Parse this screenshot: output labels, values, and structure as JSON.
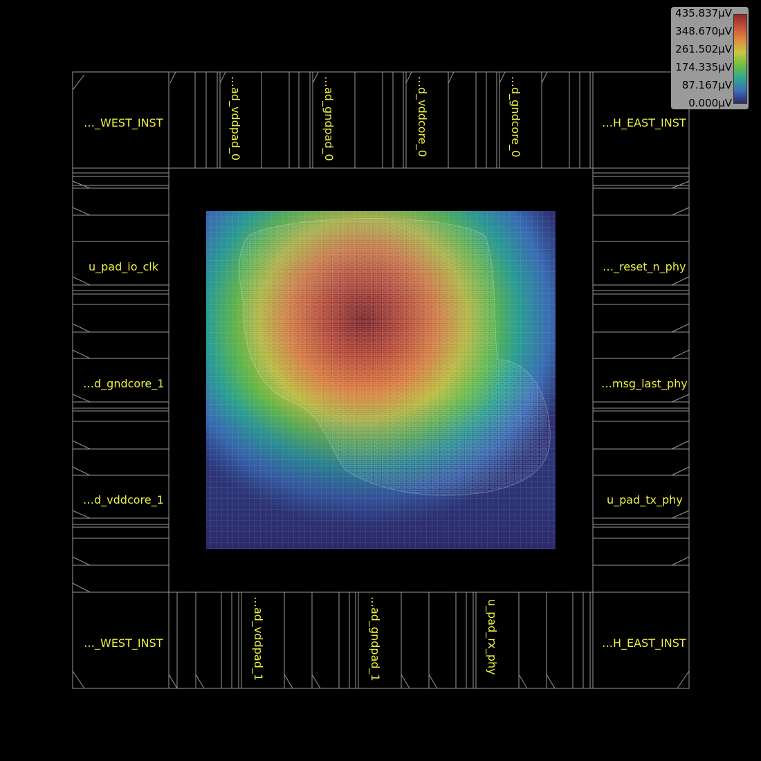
{
  "pads": {
    "top": [
      "…ad_vddpad_0",
      "…ad_gndpad_0",
      "…d_vddcore_0",
      "…d_gndcore_0"
    ],
    "bottom": [
      "…ad_vddpad_1",
      "…ad_gndpad_1",
      "u_pad_rx_phy"
    ],
    "left": [
      "u_pad_io_clk",
      "…d_gndcore_1",
      "…d_vddcore_1"
    ],
    "right": [
      "…_reset_n_phy",
      "…msg_last_phy",
      "u_pad_tx_phy"
    ],
    "corners": {
      "top_left": "…_WEST_INST",
      "top_right": "…H_EAST_INST",
      "bottom_left": "…_WEST_INST",
      "bottom_right": "…H_EAST_INST"
    }
  },
  "legend": {
    "values": [
      "435.837μV",
      "348.670μV",
      "261.502μV",
      "174.335μV",
      "87.167μV",
      "0.000μV"
    ],
    "colors": [
      "#8c2a2a",
      "#c8503a",
      "#e08a40",
      "#c8c840",
      "#70c040",
      "#30a890",
      "#3c70b8",
      "#2e2a70"
    ]
  },
  "colors": {
    "background": "#000000",
    "outline": "#9a9a9a",
    "label": "#f0f040"
  }
}
